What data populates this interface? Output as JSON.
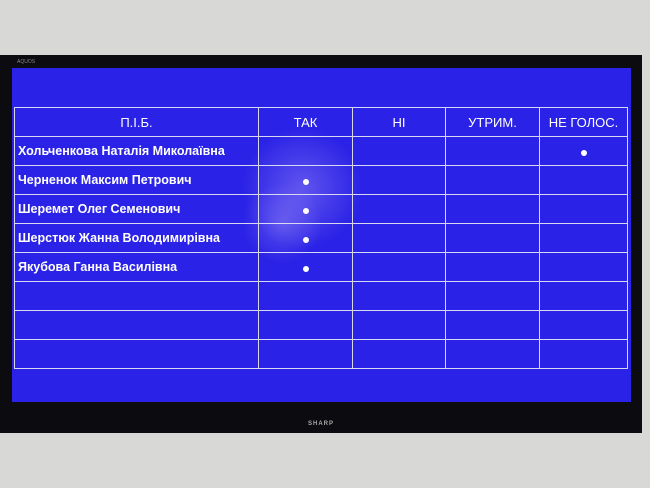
{
  "device": {
    "brand_top": "AQUOS",
    "brand_bottom": "SHARP"
  },
  "table": {
    "headers": [
      "П.І.Б.",
      "ТАК",
      "НІ",
      "УТРИМ.",
      "НЕ ГОЛОС."
    ],
    "rows": [
      {
        "name": "Хольченкова Наталія Миколаївна",
        "vote": "НЕ ГОЛОС."
      },
      {
        "name": "Черненок Максим Петрович",
        "vote": "ТАК"
      },
      {
        "name": "Шеремет Олег Семенович",
        "vote": "ТАК"
      },
      {
        "name": "Шерстюк Жанна Володимирівна",
        "vote": "ТАК"
      },
      {
        "name": "Якубова Ганна Василівна",
        "vote": "ТАК"
      },
      {
        "name": "",
        "vote": ""
      },
      {
        "name": "",
        "vote": ""
      },
      {
        "name": "",
        "vote": ""
      }
    ]
  },
  "colors": {
    "screen": "#2a22e6",
    "grid": "#d8d8f0"
  }
}
